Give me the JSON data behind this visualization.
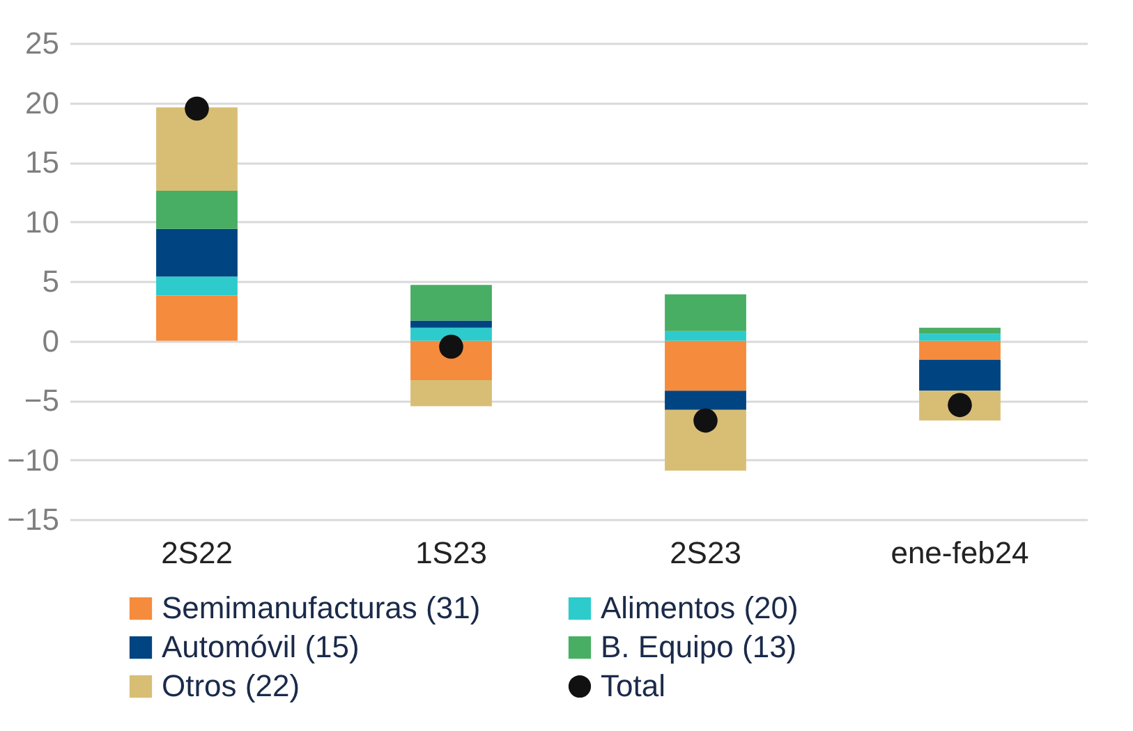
{
  "chart_data": {
    "type": "bar",
    "stacked": true,
    "categories": [
      "2S22",
      "1S23",
      "2S23",
      "ene-feb24"
    ],
    "series": [
      {
        "name": "Semimanufacturas (31)",
        "color": "#f58b3c",
        "values": [
          3.8,
          -3.3,
          -4.2,
          -1.6
        ]
      },
      {
        "name": "Alimentos (20)",
        "color": "#2ecbcc",
        "values": [
          1.6,
          1.1,
          0.8,
          0.6
        ]
      },
      {
        "name": "Automóvil (15)",
        "color": "#004481",
        "values": [
          4.0,
          0.6,
          -1.6,
          -2.6
        ]
      },
      {
        "name": "B. Equipo (13)",
        "color": "#48ae64",
        "values": [
          3.2,
          3.0,
          3.1,
          0.5
        ]
      },
      {
        "name": "Otros (22)",
        "color": "#d8be75",
        "values": [
          7.0,
          -2.2,
          -5.1,
          -2.5
        ]
      },
      {
        "name": "Total",
        "type": "scatter",
        "marker": "circle",
        "color": "#111111",
        "values": [
          19.5,
          -0.5,
          -6.7,
          -5.4
        ]
      }
    ],
    "ylim": [
      -15,
      25
    ],
    "yticks": [
      -15,
      -10,
      -5,
      0,
      5,
      10,
      15,
      20,
      25
    ],
    "grid": "y",
    "legend": "bottom"
  }
}
